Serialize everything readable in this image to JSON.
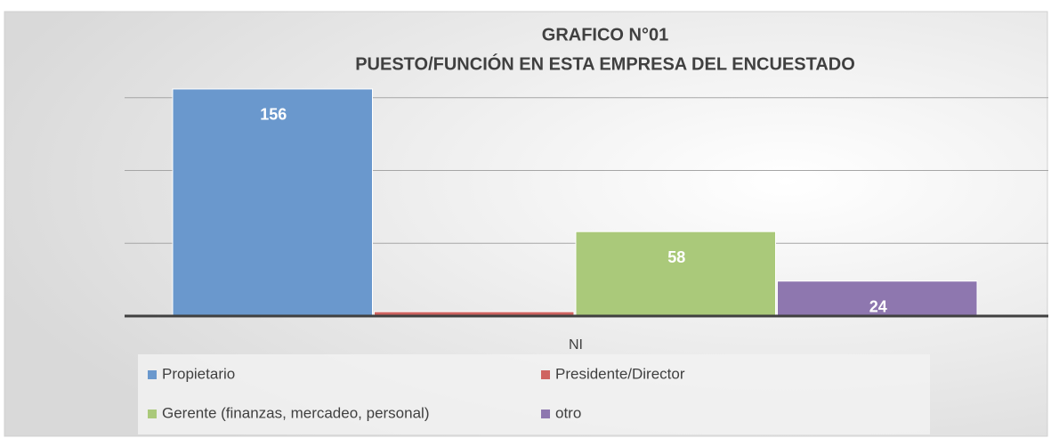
{
  "chart_data": {
    "type": "bar",
    "title": "GRAFICO N°01",
    "subtitle": "PUESTO/FUNCIÓN EN ESTA EMPRESA DEL ENCUESTADO",
    "categories": [
      "NI"
    ],
    "series": [
      {
        "name": "Propietario",
        "color": "#6a98cd",
        "values": [
          156
        ],
        "show_labels": true
      },
      {
        "name": "Presidente/Director",
        "color": "#cf6461",
        "values": [
          3
        ],
        "show_labels": false
      },
      {
        "name": "Gerente (finanzas, mercadeo, personal)",
        "color": "#aac97a",
        "values": [
          58
        ],
        "show_labels": true
      },
      {
        "name": "otro",
        "color": "#8e77af",
        "values": [
          24
        ],
        "show_labels": true
      }
    ],
    "ylim": [
      0,
      200
    ],
    "yticks": [
      0,
      50,
      100,
      150
    ],
    "grid": true,
    "legend": "bottom"
  }
}
